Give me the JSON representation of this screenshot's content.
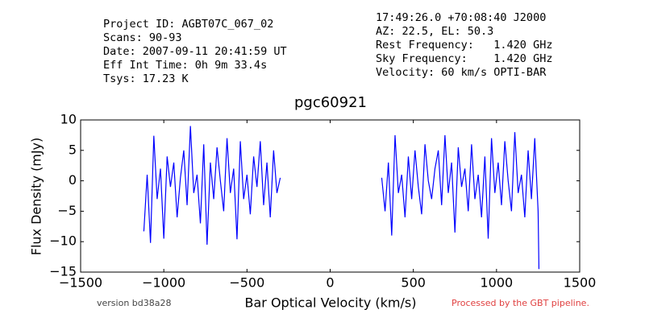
{
  "chart_data": {
    "type": "line",
    "title": "pgc60921",
    "xlabel": "Bar Optical Velocity (km/s)",
    "ylabel": "Flux Density (mJy)",
    "header_left": [
      "Project ID: AGBT07C_067_02",
      "Scans: 90-93",
      "Date: 2007-09-11 20:41:59 UT",
      "Eff Int Time: 0h 9m 33.4s",
      "Tsys: 17.23 K"
    ],
    "header_right": [
      "17:49:26.0 +70:08:40 J2000",
      "AZ: 22.5, EL: 50.3",
      "Rest Frequency:   1.420 GHz",
      "Sky Frequency:    1.420 GHz",
      "Velocity: 60 km/s OPTI-BAR"
    ],
    "footer_left": "version bd38a28",
    "footer_right": "Processed by the GBT pipeline.",
    "xlim": [
      -1500,
      1500
    ],
    "ylim": [
      -15,
      10
    ],
    "xticks": [
      {
        "value": -1500,
        "label": "−1500"
      },
      {
        "value": -1000,
        "label": "−1000"
      },
      {
        "value": -500,
        "label": "−500"
      },
      0,
      500,
      1000,
      1500
    ],
    "yticks": [
      {
        "value": -15,
        "label": "−15"
      },
      {
        "value": -10,
        "label": "−10"
      },
      {
        "value": -5,
        "label": "−5"
      },
      0,
      5,
      10
    ],
    "x": [
      -1120,
      -1100,
      -1080,
      -1060,
      -1040,
      -1020,
      -1000,
      -980,
      -960,
      -940,
      -920,
      -900,
      -880,
      -860,
      -840,
      -820,
      -800,
      -780,
      -760,
      -740,
      -720,
      -700,
      -680,
      -660,
      -640,
      -620,
      -600,
      -580,
      -560,
      -540,
      -520,
      -500,
      -480,
      -460,
      -440,
      -420,
      -400,
      -380,
      -360,
      -340,
      -320,
      -300,
      0,
      310,
      330,
      350,
      370,
      390,
      410,
      430,
      450,
      470,
      490,
      510,
      530,
      550,
      570,
      590,
      610,
      630,
      650,
      670,
      690,
      710,
      730,
      750,
      770,
      790,
      810,
      830,
      850,
      870,
      890,
      910,
      930,
      950,
      970,
      990,
      1010,
      1030,
      1050,
      1070,
      1090,
      1110,
      1130,
      1150,
      1170,
      1190,
      1210,
      1230,
      1250,
      1255
    ],
    "series": [
      {
        "color": "#0000ff",
        "values": [
          -8.3,
          1,
          -10.2,
          7.4,
          -3,
          2,
          -9.5,
          4,
          -1,
          3,
          -6,
          0.5,
          5,
          -4,
          9,
          -2,
          1,
          -7,
          6,
          -10.5,
          3,
          -3,
          5.5,
          0,
          -5,
          7,
          -2,
          2,
          -9.6,
          6.5,
          -3,
          1,
          -5.5,
          4,
          -1,
          6.5,
          -4,
          3,
          -6,
          5,
          -2,
          0.5,
          null,
          0.5,
          -5,
          3,
          -9,
          7.5,
          -2,
          1,
          -6,
          4,
          -3,
          5,
          -1,
          -5.5,
          6,
          0,
          -3,
          2,
          5,
          -4,
          7.5,
          -2,
          3,
          -8.5,
          5.5,
          -1,
          2,
          -5,
          6,
          -3,
          1,
          -6,
          4,
          -9.5,
          7,
          -2,
          3,
          -4,
          6.5,
          0,
          -5,
          8,
          -2,
          1,
          -6,
          5,
          -3,
          7,
          -5,
          -14.5
        ]
      }
    ]
  }
}
